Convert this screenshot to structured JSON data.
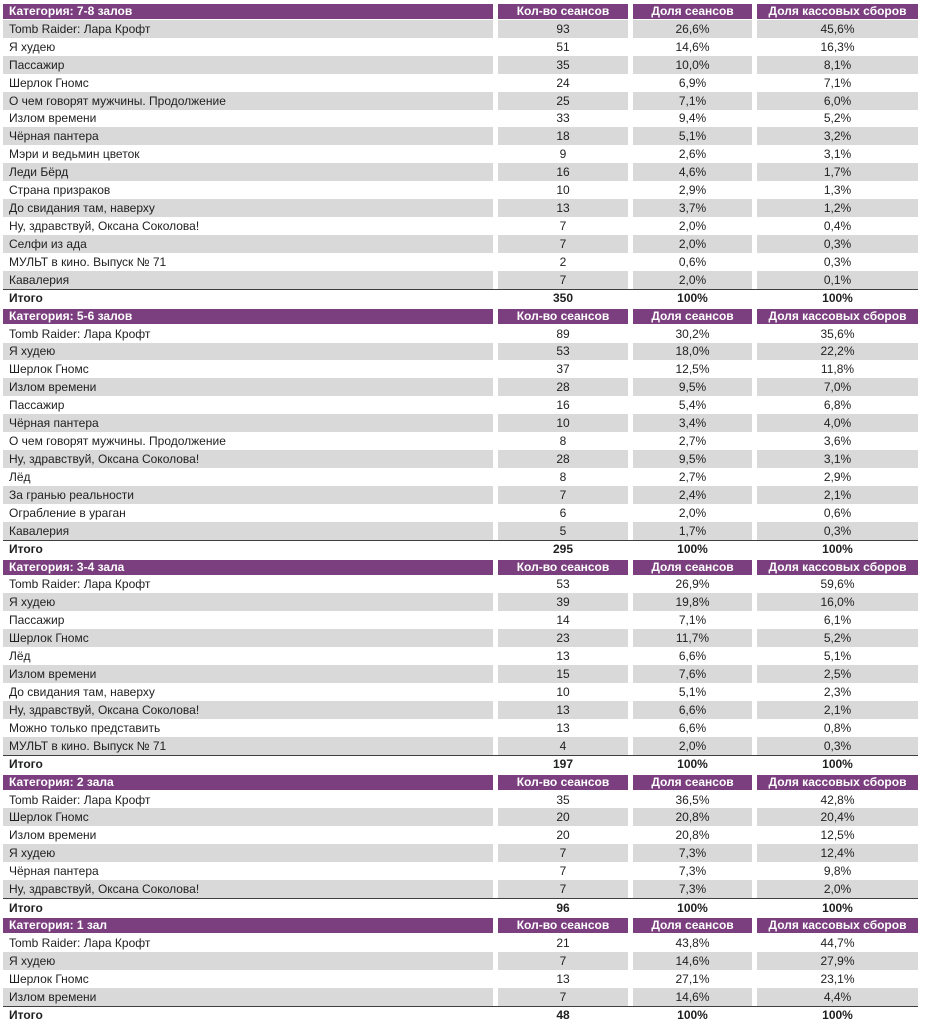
{
  "colors": {
    "header_bg": "#7B3E7F",
    "header_text": "#FFFFFF",
    "stripe": "#D9D9D9",
    "body_text": "#1F1F1F"
  },
  "columns": [
    "Кол-во сеансов",
    "Доля сеансов",
    "Доля кассовых сборов"
  ],
  "tables": [
    {
      "category": "Категория: 7-8 залов",
      "rows": [
        [
          "Tomb Raider: Лара Крофт",
          "93",
          "26,6%",
          "45,6%"
        ],
        [
          "Я худею",
          "51",
          "14,6%",
          "16,3%"
        ],
        [
          "Пассажир",
          "35",
          "10,0%",
          "8,1%"
        ],
        [
          "Шерлок Гномс",
          "24",
          "6,9%",
          "7,1%"
        ],
        [
          "О чем говорят мужчины. Продолжение",
          "25",
          "7,1%",
          "6,0%"
        ],
        [
          "Излом времени",
          "33",
          "9,4%",
          "5,2%"
        ],
        [
          "Чёрная пантера",
          "18",
          "5,1%",
          "3,2%"
        ],
        [
          "Мэри и ведьмин цветок",
          "9",
          "2,6%",
          "3,1%"
        ],
        [
          "Леди Бёрд",
          "16",
          "4,6%",
          "1,7%"
        ],
        [
          "Страна призраков",
          "10",
          "2,9%",
          "1,3%"
        ],
        [
          "До свидания там, наверху",
          "13",
          "3,7%",
          "1,2%"
        ],
        [
          "Ну, здравствуй, Оксана Соколова!",
          "7",
          "2,0%",
          "0,4%"
        ],
        [
          "Селфи из ада",
          "7",
          "2,0%",
          "0,3%"
        ],
        [
          "МУЛЬТ в кино. Выпуск № 71",
          "2",
          "0,6%",
          "0,3%"
        ],
        [
          "Кавалерия",
          "7",
          "2,0%",
          "0,1%"
        ]
      ],
      "total": [
        "Итого",
        "350",
        "100%",
        "100%"
      ]
    },
    {
      "category": "Категория: 5-6 залов",
      "rows": [
        [
          "Tomb Raider: Лара Крофт",
          "89",
          "30,2%",
          "35,6%"
        ],
        [
          "Я худею",
          "53",
          "18,0%",
          "22,2%"
        ],
        [
          "Шерлок Гномс",
          "37",
          "12,5%",
          "11,8%"
        ],
        [
          "Излом времени",
          "28",
          "9,5%",
          "7,0%"
        ],
        [
          "Пассажир",
          "16",
          "5,4%",
          "6,8%"
        ],
        [
          "Чёрная пантера",
          "10",
          "3,4%",
          "4,0%"
        ],
        [
          "О чем говорят мужчины. Продолжение",
          "8",
          "2,7%",
          "3,6%"
        ],
        [
          "Ну, здравствуй, Оксана Соколова!",
          "28",
          "9,5%",
          "3,1%"
        ],
        [
          "Лёд",
          "8",
          "2,7%",
          "2,9%"
        ],
        [
          "За гранью реальности",
          "7",
          "2,4%",
          "2,1%"
        ],
        [
          "Ограбление в ураган",
          "6",
          "2,0%",
          "0,6%"
        ],
        [
          "Кавалерия",
          "5",
          "1,7%",
          "0,3%"
        ]
      ],
      "total": [
        "Итого",
        "295",
        "100%",
        "100%"
      ]
    },
    {
      "category": "Категория: 3-4 зала",
      "rows": [
        [
          "Tomb Raider: Лара Крофт",
          "53",
          "26,9%",
          "59,6%"
        ],
        [
          "Я худею",
          "39",
          "19,8%",
          "16,0%"
        ],
        [
          "Пассажир",
          "14",
          "7,1%",
          "6,1%"
        ],
        [
          "Шерлок Гномс",
          "23",
          "11,7%",
          "5,2%"
        ],
        [
          "Лёд",
          "13",
          "6,6%",
          "5,1%"
        ],
        [
          "Излом времени",
          "15",
          "7,6%",
          "2,5%"
        ],
        [
          "До свидания там, наверху",
          "10",
          "5,1%",
          "2,3%"
        ],
        [
          "Ну, здравствуй, Оксана Соколова!",
          "13",
          "6,6%",
          "2,1%"
        ],
        [
          "Можно только представить",
          "13",
          "6,6%",
          "0,8%"
        ],
        [
          "МУЛЬТ в кино. Выпуск № 71",
          "4",
          "2,0%",
          "0,3%"
        ]
      ],
      "total": [
        "Итого",
        "197",
        "100%",
        "100%"
      ]
    },
    {
      "category": "Категория: 2 зала",
      "rows": [
        [
          "Tomb Raider: Лара Крофт",
          "35",
          "36,5%",
          "42,8%"
        ],
        [
          "Шерлок Гномс",
          "20",
          "20,8%",
          "20,4%"
        ],
        [
          "Излом времени",
          "20",
          "20,8%",
          "12,5%"
        ],
        [
          "Я худею",
          "7",
          "7,3%",
          "12,4%"
        ],
        [
          "Чёрная пантера",
          "7",
          "7,3%",
          "9,8%"
        ],
        [
          "Ну, здравствуй, Оксана Соколова!",
          "7",
          "7,3%",
          "2,0%"
        ]
      ],
      "total": [
        "Итого",
        "96",
        "100%",
        "100%"
      ]
    },
    {
      "category": "Категория: 1 зал",
      "rows": [
        [
          "Tomb Raider: Лара Крофт",
          "21",
          "43,8%",
          "44,7%"
        ],
        [
          "Я худею",
          "7",
          "14,6%",
          "27,9%"
        ],
        [
          "Шерлок Гномс",
          "13",
          "27,1%",
          "23,1%"
        ],
        [
          "Излом времени",
          "7",
          "14,6%",
          "4,4%"
        ]
      ],
      "total": [
        "Итого",
        "48",
        "100%",
        "100%"
      ]
    }
  ]
}
